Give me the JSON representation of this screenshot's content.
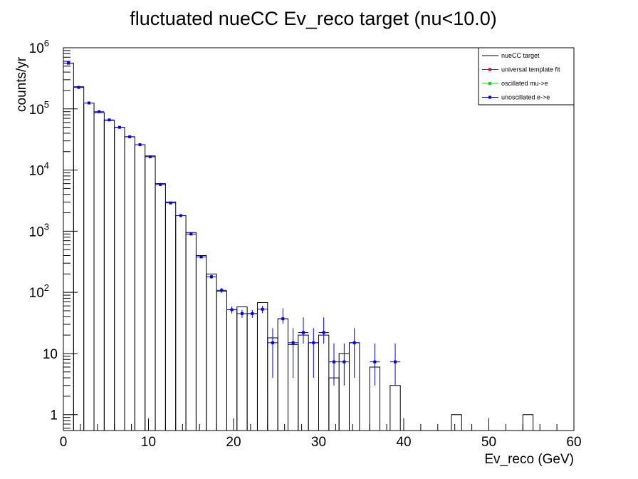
{
  "chart_data": {
    "type": "histogram",
    "title": "fluctuated nueCC Ev_reco target (nu<10.0)",
    "xlabel": "Ev_reco (GeV)",
    "ylabel": "counts/yr",
    "xlim": [
      0,
      60
    ],
    "ylim": [
      0.55,
      1000000
    ],
    "yscale": "log",
    "grid": false,
    "legend_position": "top-right",
    "x_ticks": [
      "0",
      "10",
      "20",
      "30",
      "40",
      "50",
      "60"
    ],
    "y_ticks": [
      {
        "value": 1,
        "base": "1",
        "exp": ""
      },
      {
        "value": 10,
        "base": "10",
        "exp": ""
      },
      {
        "value": 100,
        "base": "10",
        "exp": "2"
      },
      {
        "value": 1000,
        "base": "10",
        "exp": "3"
      },
      {
        "value": 10000,
        "base": "10",
        "exp": "4"
      },
      {
        "value": 100000,
        "base": "10",
        "exp": "5"
      },
      {
        "value": 1000000,
        "base": "10",
        "exp": "6"
      }
    ],
    "legend": [
      {
        "label": "nueCC target",
        "color": "#000000",
        "style": "line"
      },
      {
        "label": "universal template fit",
        "color": "#e0003c",
        "style": "marker"
      },
      {
        "label": "oscillated mu->e",
        "color": "#00e000",
        "style": "marker"
      },
      {
        "label": "unoscillated e->e",
        "color": "#0000e0",
        "style": "marker"
      }
    ],
    "bin_width": 1.2,
    "target_histogram": {
      "name": "nueCC target",
      "bin_low_edges": [
        0,
        1.2,
        2.4,
        3.6,
        4.8,
        6.0,
        7.2,
        8.4,
        9.6,
        10.8,
        12.0,
        13.2,
        14.4,
        15.6,
        16.8,
        18.0,
        19.2,
        20.4,
        21.6,
        22.8,
        24.0,
        25.2,
        26.4,
        27.6,
        28.8,
        30.0,
        31.2,
        32.4,
        33.6,
        34.8,
        36.0,
        37.2,
        38.4,
        39.6,
        45.6,
        54.0
      ],
      "values": [
        560000,
        230000,
        125000,
        87000,
        65000,
        50000,
        35000,
        26000,
        17000,
        6000,
        3000,
        1800,
        950,
        400,
        200,
        105,
        52,
        58,
        45,
        68,
        18,
        37,
        14,
        20,
        15,
        20,
        4,
        10,
        15,
        0,
        6,
        0,
        3,
        0,
        1,
        1
      ]
    },
    "unoscillated_points": {
      "name": "unoscillated e->e",
      "color": "#0000e0",
      "x": [
        0.6,
        1.8,
        3.0,
        4.2,
        5.4,
        6.6,
        7.8,
        9.0,
        10.2,
        11.4,
        12.6,
        13.8,
        15.0,
        16.2,
        17.4,
        18.6,
        19.8,
        21.0,
        22.2,
        23.4,
        24.6,
        25.8,
        27.0,
        28.2,
        29.4,
        30.6,
        31.8,
        33.0,
        34.2,
        36.6,
        39.0
      ],
      "y": [
        560000,
        225000,
        125000,
        90000,
        66000,
        50000,
        35000,
        26000,
        16500,
        5800,
        2900,
        1800,
        900,
        380,
        180,
        108,
        52,
        45,
        45,
        53,
        15,
        37,
        15,
        22,
        15,
        22,
        7.3,
        7.3,
        15,
        7.3,
        7.3
      ],
      "err_low": [
        740,
        470,
        350,
        300,
        257,
        224,
        187,
        161,
        128,
        76,
        54,
        42,
        30,
        19.5,
        13.4,
        10.4,
        7.2,
        6.7,
        6.7,
        7.3,
        11,
        6.1,
        11,
        7.5,
        11,
        7.5,
        4.3,
        4.3,
        11,
        4.3,
        4.3
      ],
      "err_high": [
        740,
        470,
        350,
        300,
        257,
        224,
        187,
        161,
        128,
        76,
        54,
        42,
        30,
        19.5,
        13.4,
        10.4,
        7.2,
        6.7,
        6.7,
        7.3,
        11,
        18,
        11,
        17,
        11,
        17,
        7.3,
        7.3,
        11,
        7.3,
        7.3
      ]
    }
  }
}
